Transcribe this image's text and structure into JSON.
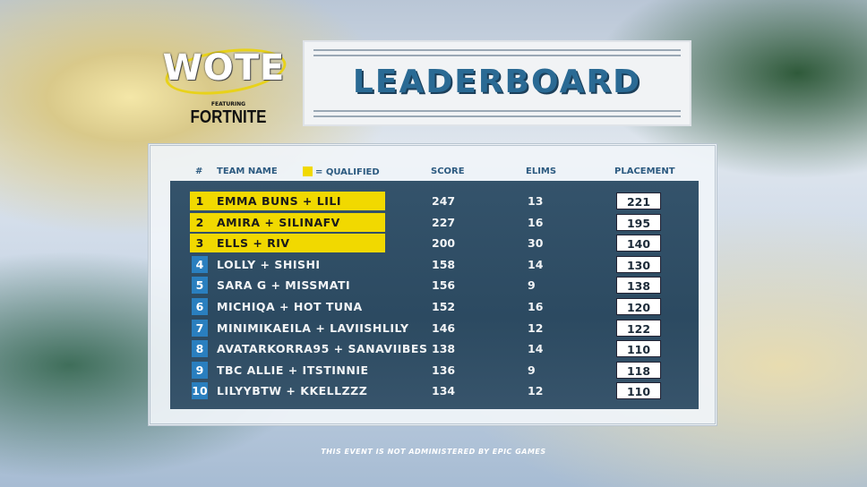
{
  "logo": {
    "brand": "WOTE",
    "featuring": "FEATURING",
    "game": "FORTNITE"
  },
  "title": "LEADERBOARD",
  "headers": {
    "rank": "#",
    "team": "TEAM NAME",
    "qualified": "= QUALIFIED",
    "score": "SCORE",
    "elims": "ELIMS",
    "placement": "PLACEMENT"
  },
  "colors": {
    "qualified": "#f1d900",
    "rank_badge": "#2a7fbf",
    "title": "#2a6a94",
    "table_bg": "#34536b"
  },
  "rows": [
    {
      "rank": "1",
      "team": "EMMA BUNS + LILI",
      "score": "247",
      "elims": "13",
      "placement": "221",
      "qualified": true
    },
    {
      "rank": "2",
      "team": "AMIRA + SILINAFV",
      "score": "227",
      "elims": "16",
      "placement": "195",
      "qualified": true
    },
    {
      "rank": "3",
      "team": "ELLS + RIV",
      "score": "200",
      "elims": "30",
      "placement": "140",
      "qualified": true
    },
    {
      "rank": "4",
      "team": "LOLLY + SHISHI",
      "score": "158",
      "elims": "14",
      "placement": "130",
      "qualified": false
    },
    {
      "rank": "5",
      "team": "SARA G + MISSMATI",
      "score": "156",
      "elims": "9",
      "placement": "138",
      "qualified": false
    },
    {
      "rank": "6",
      "team": "MICHIQA + HOT TUNA",
      "score": "152",
      "elims": "16",
      "placement": "120",
      "qualified": false
    },
    {
      "rank": "7",
      "team": "MINIMIKAEILA + LAVIISHLILY",
      "score": "146",
      "elims": "12",
      "placement": "122",
      "qualified": false
    },
    {
      "rank": "8",
      "team": "AVATARKORRA95 + SANAVIIBES",
      "score": "138",
      "elims": "14",
      "placement": "110",
      "qualified": false
    },
    {
      "rank": "9",
      "team": "TBC ALLIE + ITSTINNIE",
      "score": "136",
      "elims": "9",
      "placement": "118",
      "qualified": false
    },
    {
      "rank": "10",
      "team": "LILYYBTW + KKELLZZZ",
      "score": "134",
      "elims": "12",
      "placement": "110",
      "qualified": false
    }
  ],
  "footer": "THIS EVENT IS NOT ADMINISTERED BY EPIC GAMES"
}
